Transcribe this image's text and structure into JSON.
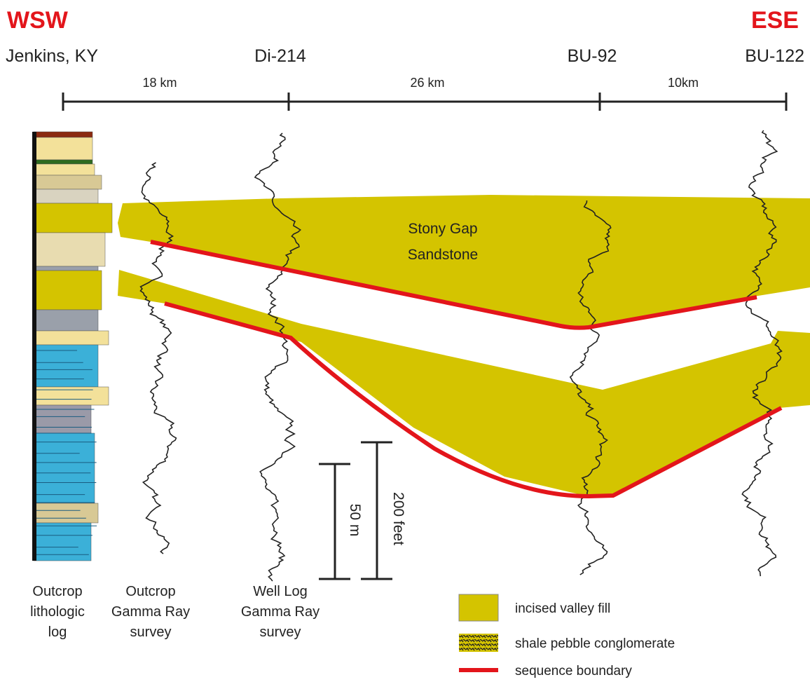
{
  "header": {
    "west": "WSW",
    "east": "ESE"
  },
  "wells": [
    "Jenkins, KY",
    "Di-214",
    "BU-92",
    "BU-122"
  ],
  "distances": [
    "18 km",
    "26 km",
    "10km"
  ],
  "unit_label": [
    "Stony Gap",
    "Sandstone"
  ],
  "scale": {
    "metric": "50 m",
    "imperial": "200 feet"
  },
  "columns": [
    [
      "Outcrop",
      "lithologic",
      "log"
    ],
    [
      "Outcrop",
      "Gamma Ray",
      "survey"
    ],
    [
      "Well Log",
      "Gamma Ray",
      "survey"
    ]
  ],
  "legend": [
    "incised valley fill",
    "shale pebble conglomerate",
    "sequence boundary"
  ]
}
